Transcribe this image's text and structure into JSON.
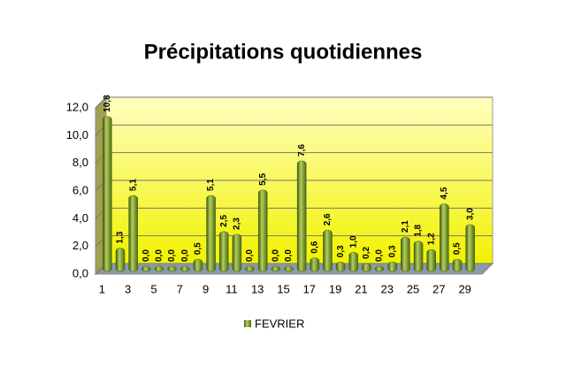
{
  "chart_data": {
    "type": "bar",
    "title": "Précipitations quotidiennes",
    "categories": [
      "1",
      null,
      "3",
      null,
      "5",
      null,
      "7",
      null,
      "9",
      null,
      "11",
      null,
      "13",
      null,
      "15",
      null,
      "17",
      null,
      "19",
      null,
      "21",
      null,
      "23",
      null,
      "25",
      null,
      "27",
      null,
      "29"
    ],
    "series": [
      {
        "name": "FEVRIER",
        "color": "#6b8e23",
        "values": [
          10.8,
          1.3,
          5.1,
          0,
          0,
          0,
          0,
          0.5,
          5.1,
          2.5,
          2.3,
          0,
          5.5,
          0,
          0,
          7.6,
          0.6,
          2.6,
          0.3,
          1.0,
          0.2,
          0,
          0.3,
          2.1,
          1.8,
          1.2,
          4.5,
          0.5,
          3.0
        ],
        "value_labels": [
          "10,8",
          "1,3",
          "5,1",
          "0,0",
          "0,0",
          "0,0",
          "0,0",
          "0,5",
          "5,1",
          "2,5",
          "2,3",
          "0,0",
          "5,5",
          "0,0",
          "0,0",
          "7,6",
          "0,6",
          "2,6",
          "0,3",
          "1,0",
          "0,2",
          "0,0",
          "0,3",
          "2,1",
          "1,8",
          "1,2",
          "4,5",
          "0,5",
          "3,0"
        ]
      }
    ],
    "ylim": [
      0,
      12
    ],
    "yticks": [
      {
        "value": 0,
        "label": "0,0"
      },
      {
        "value": 2,
        "label": "2,0"
      },
      {
        "value": 4,
        "label": "4,0"
      },
      {
        "value": 6,
        "label": "6,0"
      },
      {
        "value": 8,
        "label": "8,0"
      },
      {
        "value": 10,
        "label": "10,0"
      },
      {
        "value": 12,
        "label": "12,0"
      }
    ],
    "legend": "bottom"
  }
}
